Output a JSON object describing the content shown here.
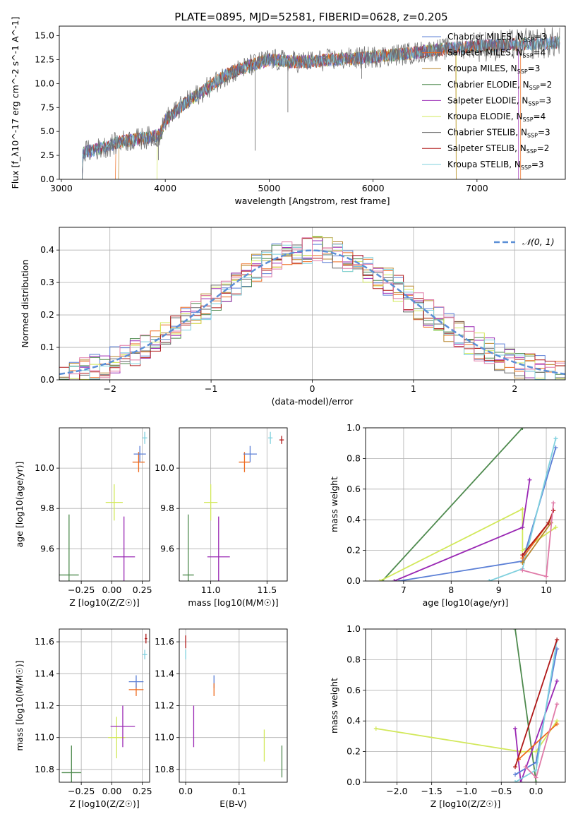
{
  "figure": {
    "title": "PLATE=0895, MJD=52581, FIBERID=0628, z=0.205"
  },
  "colors": {
    "chabrier_miles": "#5b7fd6",
    "salpeter_miles": "#ee6a1e",
    "kroupa_miles": "#b8862c",
    "chabrier_elodie": "#4e8a4e",
    "salpeter_elodie": "#9a28b4",
    "kroupa_elodie": "#d2e85a",
    "chabrier_stelib": "#666666",
    "salpeter_stelib": "#b01818",
    "kroupa_stelib": "#7fd0de",
    "normal_curve": "#5b8fd6",
    "grid": "#b0b0b0"
  },
  "chart_data": [
    {
      "id": "spectrum",
      "type": "line",
      "xlabel": "wavelength [Angstrom, rest frame]",
      "ylabel": "Flux [f_λ10^-17 erg cm^-2 s^-1 A^-1]",
      "xlim": [
        2980,
        7850
      ],
      "ylim": [
        0,
        16
      ],
      "xticks": [
        "3000",
        "4000",
        "5000",
        "6000",
        "7000"
      ],
      "yticks": [
        "0.0",
        "2.5",
        "5.0",
        "7.5",
        "10.0",
        "12.5",
        "15.0"
      ],
      "grid": false,
      "legend_position": "right",
      "legend": [
        {
          "text": "Chabrier MILES, N",
          "sub": "SSP",
          "tail": "=3",
          "key": "chabrier_miles"
        },
        {
          "text": "Salpeter MILES, N",
          "sub": "SSP",
          "tail": "=4",
          "key": "salpeter_miles"
        },
        {
          "text": "Kroupa MILES, N",
          "sub": "SSP",
          "tail": "=3",
          "key": "kroupa_miles"
        },
        {
          "text": "Chabrier ELODIE, N",
          "sub": "SSP",
          "tail": "=2",
          "key": "chabrier_elodie"
        },
        {
          "text": "Salpeter ELODIE, N",
          "sub": "SSP",
          "tail": "=3",
          "key": "salpeter_elodie"
        },
        {
          "text": "Kroupa ELODIE, N",
          "sub": "SSP",
          "tail": "=4",
          "key": "kroupa_elodie"
        },
        {
          "text": "Chabrier STELIB, N",
          "sub": "SSP",
          "tail": "=3",
          "key": "chabrier_stelib"
        },
        {
          "text": "Salpeter STELIB, N",
          "sub": "SSP",
          "tail": "=2",
          "key": "salpeter_stelib"
        },
        {
          "text": "Kroupa STELIB, N",
          "sub": "SSP",
          "tail": "=3",
          "key": "kroupa_stelib"
        }
      ],
      "continuum": {
        "x": [
          3200,
          3400,
          3600,
          3800,
          3950,
          4000,
          4200,
          4400,
          4600,
          4800,
          5000,
          5200,
          5400,
          5600,
          5800,
          6000,
          6200,
          6400,
          6600,
          6800,
          7000,
          7200,
          7400,
          7600,
          7800
        ],
        "y": [
          2.8,
          3.3,
          4.0,
          4.3,
          4.6,
          6.2,
          8.0,
          9.5,
          11.0,
          11.8,
          12.5,
          12.3,
          12.3,
          12.5,
          12.6,
          12.8,
          13.0,
          13.2,
          13.5,
          13.7,
          13.9,
          14.0,
          14.1,
          14.2,
          14.3
        ]
      }
    },
    {
      "id": "residuals",
      "type": "histogram",
      "xlabel": "(data-model)/error",
      "ylabel": "Normed distribution",
      "xlim": [
        -2.5,
        2.5
      ],
      "ylim": [
        0,
        0.47
      ],
      "xticks": [
        "−2",
        "−1",
        "0",
        "1",
        "2"
      ],
      "yticks": [
        "0.0",
        "0.1",
        "0.2",
        "0.3",
        "0.4"
      ],
      "grid": true,
      "legend_position": "top-right",
      "legend": "𝒩(0, 1)",
      "bin_width": 0.1
    },
    {
      "id": "age_vs_Z",
      "type": "errorbar",
      "xlabel": "Z [log10(Z/Z☉)]",
      "ylabel": "age [log10(age/yr)]",
      "xlim": [
        -0.43,
        0.31
      ],
      "ylim": [
        9.44,
        10.2
      ],
      "xticks": [
        "−0.25",
        "0.00",
        "0.25"
      ],
      "yticks": [
        "9.6",
        "9.8",
        "10.0"
      ],
      "grid": true,
      "points": [
        {
          "key": "chabrier_elodie",
          "x": -0.35,
          "y": 9.47,
          "xerr": 0.08,
          "yerr": 0.3
        },
        {
          "key": "kroupa_elodie",
          "x": 0.02,
          "y": 9.83,
          "xerr": 0.07,
          "yerr": 0.09
        },
        {
          "key": "salpeter_elodie",
          "x": 0.1,
          "y": 9.56,
          "xerr": 0.09,
          "yerr": 0.2
        },
        {
          "key": "salpeter_miles",
          "x": 0.22,
          "y": 10.03,
          "xerr": 0.05,
          "yerr": 0.05
        },
        {
          "key": "chabrier_miles",
          "x": 0.23,
          "y": 10.07,
          "xerr": 0.05,
          "yerr": 0.04
        },
        {
          "key": "kroupa_stelib",
          "x": 0.27,
          "y": 10.15,
          "xerr": 0.02,
          "yerr": 0.03
        }
      ]
    },
    {
      "id": "age_vs_mass",
      "type": "errorbar",
      "xlabel": "mass [log10(M/M☉)]",
      "ylabel": "",
      "xlim": [
        10.72,
        11.68
      ],
      "ylim": [
        9.44,
        10.2
      ],
      "xticks": [
        "11.0",
        "11.5"
      ],
      "yticks": [
        "9.6",
        "9.8",
        "10.0"
      ],
      "grid": true,
      "points": [
        {
          "key": "chabrier_elodie",
          "x": 10.8,
          "y": 9.47,
          "xerr": 0.05,
          "yerr": 0.3
        },
        {
          "key": "kroupa_elodie",
          "x": 11.0,
          "y": 9.83,
          "xerr": 0.06,
          "yerr": 0.09
        },
        {
          "key": "salpeter_elodie",
          "x": 11.07,
          "y": 9.56,
          "xerr": 0.1,
          "yerr": 0.2
        },
        {
          "key": "salpeter_miles",
          "x": 11.3,
          "y": 10.03,
          "xerr": 0.05,
          "yerr": 0.05
        },
        {
          "key": "chabrier_miles",
          "x": 11.35,
          "y": 10.07,
          "xerr": 0.06,
          "yerr": 0.04
        },
        {
          "key": "kroupa_stelib",
          "x": 11.53,
          "y": 10.15,
          "xerr": 0.02,
          "yerr": 0.03
        },
        {
          "key": "salpeter_stelib",
          "x": 11.63,
          "y": 10.14,
          "xerr": 0.02,
          "yerr": 0.02
        }
      ]
    },
    {
      "id": "weight_vs_age",
      "type": "line",
      "xlabel": "age [log10(age/yr)]",
      "ylabel": "mass weight",
      "xlim": [
        6.2,
        10.4
      ],
      "ylim": [
        0,
        1
      ],
      "xticks": [
        "7",
        "8",
        "9",
        "10"
      ],
      "yticks": [
        "0.0",
        "0.2",
        "0.4",
        "0.6",
        "0.8",
        "1.0"
      ],
      "grid": true,
      "series": [
        {
          "key": "chabrier_elodie",
          "x": [
            6.55,
            9.5
          ],
          "y": [
            0.0,
            1.0
          ]
        },
        {
          "key": "kroupa_elodie",
          "x": [
            6.5,
            9.5,
            9.5,
            10.2
          ],
          "y": [
            0.0,
            0.47,
            0.2,
            0.35
          ]
        },
        {
          "key": "salpeter_elodie",
          "x": [
            6.8,
            9.5,
            9.65
          ],
          "y": [
            0.0,
            0.35,
            0.66
          ]
        },
        {
          "key": "chabrier_miles",
          "x": [
            6.9,
            9.5,
            10.2
          ],
          "y": [
            0.0,
            0.13,
            0.87
          ]
        },
        {
          "key": "kroupa_stelib",
          "x": [
            8.8,
            9.5,
            10.2
          ],
          "y": [
            0.0,
            0.08,
            0.93
          ]
        },
        {
          "key": "salpeter_miles",
          "x": [
            9.5,
            10.05,
            10.15
          ],
          "y": [
            0.15,
            0.38,
            0.46
          ]
        },
        {
          "key": "salpeter_stelib",
          "x": [
            9.5,
            10.05,
            10.15
          ],
          "y": [
            0.17,
            0.38,
            0.46
          ]
        },
        {
          "key": "kroupa_miles",
          "x": [
            9.5,
            10.1
          ],
          "y": [
            0.12,
            0.38
          ]
        },
        {
          "key": "pink",
          "x": [
            9.5,
            10.0,
            10.15
          ],
          "y": [
            0.07,
            0.03,
            0.51
          ]
        }
      ]
    },
    {
      "id": "mass_vs_Z",
      "type": "errorbar",
      "xlabel": "Z [log10(Z/Z☉)]",
      "ylabel": "mass [log10(M/M☉)]",
      "xlim": [
        -0.43,
        0.31
      ],
      "ylim": [
        10.72,
        11.68
      ],
      "xticks": [
        "−0.25",
        "0.00",
        "0.25"
      ],
      "yticks": [
        "10.8",
        "11.0",
        "11.2",
        "11.4",
        "11.6"
      ],
      "grid": true,
      "points": [
        {
          "key": "chabrier_elodie",
          "x": -0.33,
          "y": 10.78,
          "xerr": 0.08,
          "yerr": 0.17
        },
        {
          "key": "kroupa_elodie",
          "x": 0.04,
          "y": 11.0,
          "xerr": 0.07,
          "yerr": 0.13
        },
        {
          "key": "salpeter_elodie",
          "x": 0.09,
          "y": 11.07,
          "xerr": 0.1,
          "yerr": 0.13
        },
        {
          "key": "salpeter_miles",
          "x": 0.2,
          "y": 11.3,
          "xerr": 0.06,
          "yerr": 0.04
        },
        {
          "key": "chabrier_miles",
          "x": 0.2,
          "y": 11.35,
          "xerr": 0.06,
          "yerr": 0.04
        },
        {
          "key": "kroupa_stelib",
          "x": 0.27,
          "y": 11.52,
          "xerr": 0.02,
          "yerr": 0.03
        },
        {
          "key": "salpeter_stelib",
          "x": 0.28,
          "y": 11.62,
          "xerr": 0.01,
          "yerr": 0.03
        }
      ]
    },
    {
      "id": "mass_vs_ebv",
      "type": "errorbar",
      "xlabel": "E(B-V)",
      "ylabel": "",
      "xlim": [
        -0.012,
        0.19
      ],
      "ylim": [
        10.72,
        11.68
      ],
      "xticks": [
        "0.0",
        "0.1"
      ],
      "yticks": [
        "10.8",
        "11.0",
        "11.2",
        "11.4",
        "11.6"
      ],
      "grid": true,
      "points": [
        {
          "key": "salpeter_stelib",
          "x": 0.0,
          "y": 11.6,
          "xerr": 0.0,
          "yerr": 0.04
        },
        {
          "key": "kroupa_stelib",
          "x": 0.0,
          "y": 11.52,
          "xerr": 0.0,
          "yerr": 0.03
        },
        {
          "key": "salpeter_elodie",
          "x": 0.015,
          "y": 11.07,
          "xerr": 0.0,
          "yerr": 0.13
        },
        {
          "key": "chabrier_miles",
          "x": 0.053,
          "y": 11.35,
          "xerr": 0.0,
          "yerr": 0.04
        },
        {
          "key": "salpeter_miles",
          "x": 0.053,
          "y": 11.3,
          "xerr": 0.0,
          "yerr": 0.04
        },
        {
          "key": "kroupa_elodie",
          "x": 0.147,
          "y": 10.95,
          "xerr": 0.0,
          "yerr": 0.1
        },
        {
          "key": "chabrier_elodie",
          "x": 0.18,
          "y": 10.85,
          "xerr": 0.0,
          "yerr": 0.1
        }
      ]
    },
    {
      "id": "weight_vs_Z",
      "type": "line",
      "xlabel": "Z [log10(Z/Z☉)]",
      "ylabel": "mass weight",
      "xlim": [
        -2.45,
        0.42
      ],
      "ylim": [
        0,
        1
      ],
      "xticks": [
        "−2.0",
        "−1.5",
        "−1.0",
        "−0.5",
        "0.0"
      ],
      "yticks": [
        "0.0",
        "0.2",
        "0.4",
        "0.6",
        "0.8",
        "1.0"
      ],
      "grid": true,
      "series": [
        {
          "key": "kroupa_elodie",
          "x": [
            -2.3,
            -0.22,
            0.0,
            0.3
          ],
          "y": [
            0.35,
            0.2,
            0.2,
            0.4
          ]
        },
        {
          "key": "chabrier_elodie",
          "x": [
            -0.3,
            0.0
          ],
          "y": [
            1.0,
            0.0
          ]
        },
        {
          "key": "salpeter_elodie",
          "x": [
            -0.3,
            -0.22,
            0.3
          ],
          "y": [
            0.35,
            0.0,
            0.66
          ]
        },
        {
          "key": "chabrier_miles",
          "x": [
            -0.3,
            0.0,
            0.3
          ],
          "y": [
            0.05,
            0.13,
            0.87
          ]
        },
        {
          "key": "kroupa_stelib",
          "x": [
            -0.3,
            0.0,
            0.3
          ],
          "y": [
            0.0,
            0.08,
            0.93
          ]
        },
        {
          "key": "salpeter_miles",
          "x": [
            -0.25,
            0.3
          ],
          "y": [
            0.15,
            0.38
          ]
        },
        {
          "key": "salpeter_stelib",
          "x": [
            -0.3,
            0.3
          ],
          "y": [
            0.1,
            0.93
          ]
        },
        {
          "key": "pink",
          "x": [
            -0.15,
            0.0,
            0.3
          ],
          "y": [
            0.1,
            0.03,
            0.51
          ]
        }
      ]
    }
  ]
}
